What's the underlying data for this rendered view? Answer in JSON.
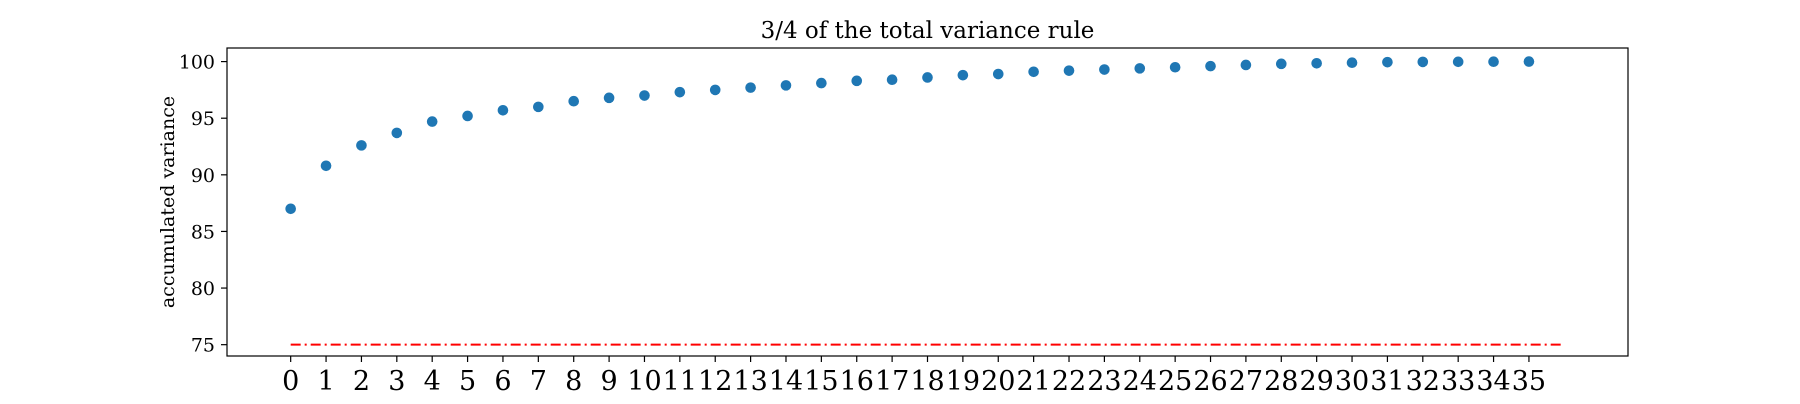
{
  "chart_data": {
    "type": "scatter",
    "title": "3/4 of the total variance rule",
    "xlabel": "",
    "ylabel": "accumulated variance",
    "xlim": [
      -1.8,
      37.8
    ],
    "ylim": [
      74.0,
      101.2
    ],
    "x_ticks": [
      0,
      1,
      2,
      3,
      4,
      5,
      6,
      7,
      8,
      9,
      10,
      11,
      12,
      13,
      14,
      15,
      16,
      17,
      18,
      19,
      20,
      21,
      22,
      23,
      24,
      25,
      26,
      27,
      28,
      29,
      30,
      31,
      32,
      33,
      34,
      35
    ],
    "y_ticks": [
      75,
      80,
      85,
      90,
      95,
      100
    ],
    "grid": false,
    "series": [
      {
        "color": "#1f77b4",
        "x": [
          0,
          1,
          2,
          3,
          4,
          5,
          6,
          7,
          8,
          9,
          10,
          11,
          12,
          13,
          14,
          15,
          16,
          17,
          18,
          19,
          20,
          21,
          22,
          23,
          24,
          25,
          26,
          27,
          28,
          29,
          30,
          31,
          32,
          33,
          34,
          35
        ],
        "y": [
          87.0,
          90.8,
          92.6,
          93.7,
          94.7,
          95.2,
          95.7,
          96.0,
          96.5,
          96.8,
          97.0,
          97.3,
          97.5,
          97.7,
          97.9,
          98.1,
          98.3,
          98.4,
          98.6,
          98.8,
          98.9,
          99.1,
          99.2,
          99.3,
          99.4,
          99.5,
          99.6,
          99.7,
          99.8,
          99.85,
          99.9,
          99.95,
          99.97,
          99.98,
          99.99,
          100.0
        ]
      }
    ],
    "threshold_line": {
      "y": 75,
      "x_range": [
        0,
        36
      ],
      "color": "#ff0000",
      "style": "dashdot"
    }
  }
}
